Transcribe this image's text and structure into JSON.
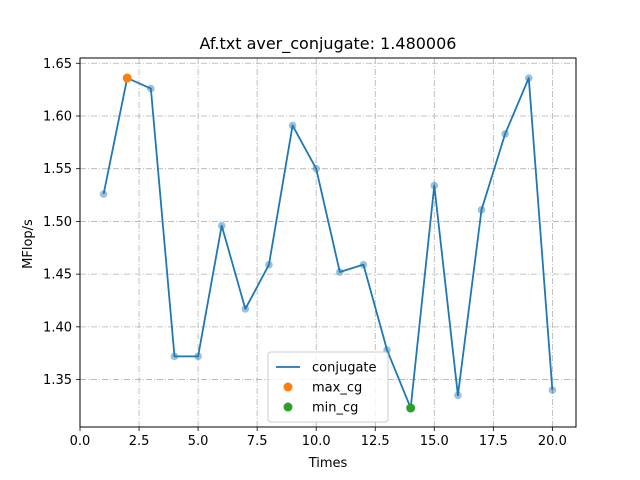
{
  "chart_data": {
    "type": "line",
    "title": "Af.txt aver_conjugate: 1.480006",
    "xlabel": "Times",
    "ylabel": "MFlop/s",
    "xlim": [
      -0.0,
      21.0
    ],
    "ylim": [
      1.305,
      1.655
    ],
    "xticks": [
      0.0,
      2.5,
      5.0,
      7.5,
      10.0,
      12.5,
      15.0,
      17.5,
      20.0
    ],
    "xtick_labels": [
      "0.0",
      "2.5",
      "5.0",
      "7.5",
      "10.0",
      "12.5",
      "15.0",
      "17.5",
      "20.0"
    ],
    "yticks": [
      1.35,
      1.4,
      1.45,
      1.5,
      1.55,
      1.6,
      1.65
    ],
    "ytick_labels": [
      "1.35",
      "1.40",
      "1.45",
      "1.50",
      "1.55",
      "1.60",
      "1.65"
    ],
    "grid": true,
    "legend_position": "lower-center",
    "series": [
      {
        "name": "conjugate",
        "color": "#1f77b4",
        "x": [
          1,
          2,
          3,
          4,
          5,
          6,
          7,
          8,
          9,
          10,
          11,
          12,
          13,
          14,
          15,
          16,
          17,
          18,
          19,
          20
        ],
        "values": [
          1.526,
          1.636,
          1.626,
          1.372,
          1.372,
          1.496,
          1.417,
          1.459,
          1.591,
          1.55,
          1.452,
          1.459,
          1.378,
          1.323,
          1.534,
          1.335,
          1.511,
          1.583,
          1.636,
          1.34
        ]
      }
    ],
    "markers": [
      {
        "name": "max_cg",
        "color": "#ff7f0e",
        "x": 2,
        "y": 1.636
      },
      {
        "name": "min_cg",
        "color": "#2ca02c",
        "x": 14,
        "y": 1.323
      }
    ]
  }
}
